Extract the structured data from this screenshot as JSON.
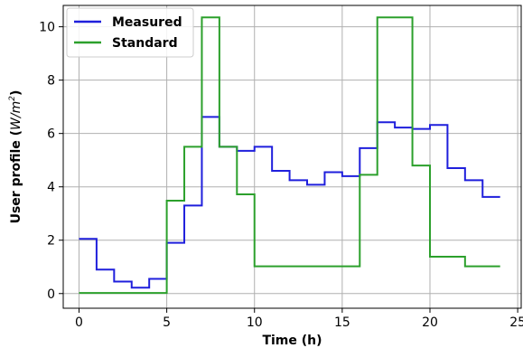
{
  "chart_data": {
    "type": "line",
    "step": "post",
    "xlabel": "Time (h)",
    "ylabel_parts": [
      "User profile (",
      "W/m",
      "2",
      ")"
    ],
    "xlim": [
      -0.9,
      25.2
    ],
    "ylim": [
      -0.55,
      10.8
    ],
    "xticks": [
      0,
      5,
      10,
      15,
      20,
      25
    ],
    "yticks": [
      0,
      2,
      4,
      6,
      8,
      10
    ],
    "grid": true,
    "legend_position": "upper-left",
    "x": [
      0,
      1,
      2,
      3,
      4,
      5,
      6,
      7,
      8,
      9,
      10,
      11,
      12,
      13,
      14,
      15,
      16,
      17,
      18,
      19,
      20,
      21,
      22,
      23,
      24
    ],
    "series": [
      {
        "name": "Measured",
        "color": "#1f1fdc",
        "values": [
          2.05,
          0.9,
          0.45,
          0.22,
          0.55,
          1.9,
          3.3,
          6.62,
          5.5,
          5.35,
          5.5,
          4.6,
          4.25,
          4.08,
          4.55,
          4.4,
          5.45,
          6.42,
          6.22,
          6.17,
          6.32,
          4.7,
          4.25,
          3.62,
          3.62
        ]
      },
      {
        "name": "Standard",
        "color": "#2ca02c",
        "values": [
          0.02,
          0.02,
          0.02,
          0.02,
          0.02,
          3.48,
          5.5,
          10.35,
          5.5,
          3.72,
          1.02,
          1.02,
          1.02,
          1.02,
          1.02,
          1.02,
          4.45,
          10.35,
          10.35,
          4.8,
          1.38,
          1.38,
          1.02,
          1.02,
          1.02
        ]
      }
    ]
  }
}
